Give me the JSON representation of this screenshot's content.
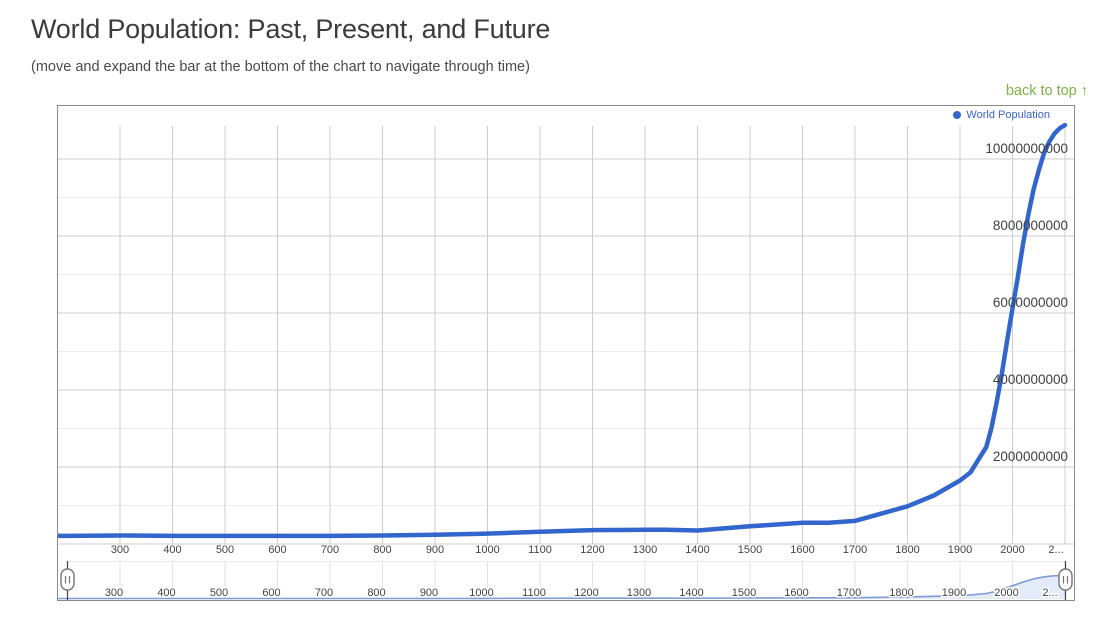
{
  "page": {
    "title": "World Population: Past, Present, and Future",
    "subtitle": "(move and expand the bar at the bottom of the chart to navigate through time)",
    "back_to_top_label": "back to top",
    "back_to_top_arrow": "↑"
  },
  "colors": {
    "series_line": "#3366cc",
    "legend_text": "#3a64c8",
    "mini_line": "#7e9cd9",
    "mini_fill": "rgba(102,140,217,0.18)",
    "grid_major": "#cccccc",
    "grid_minor": "#ebebf3",
    "slider_grid": "#e2e2e8",
    "slider_separator": "#e7e7e7",
    "axis_label": "#444444",
    "y_label": "#3f3f3f",
    "panel_border": "#8a8a8a",
    "back_to_top_green": "#7cb342",
    "handle_stroke": "#757575",
    "handle_line": "#444444"
  },
  "chart_data": {
    "type": "line",
    "title": "",
    "legend": [
      {
        "label": "World Population",
        "color": "#3366cc"
      }
    ],
    "legend_position": "top-right",
    "grid": true,
    "unit": "persons (y labels absolute), series values in billions",
    "xlim": [
      182,
      2100
    ],
    "ylim_billions": [
      0,
      11.3
    ],
    "x": [
      182,
      200,
      300,
      400,
      500,
      600,
      700,
      800,
      900,
      1000,
      1100,
      1200,
      1300,
      1340,
      1400,
      1500,
      1600,
      1650,
      1700,
      1750,
      1800,
      1850,
      1900,
      1920,
      1940,
      1950,
      1960,
      1970,
      1980,
      1990,
      2000,
      2010,
      2020,
      2030,
      2040,
      2050,
      2060,
      2070,
      2080,
      2090,
      2100
    ],
    "series": [
      {
        "name": "World Population",
        "values_billions": [
          0.21,
          0.21,
          0.22,
          0.21,
          0.21,
          0.21,
          0.21,
          0.22,
          0.24,
          0.27,
          0.32,
          0.36,
          0.37,
          0.37,
          0.35,
          0.46,
          0.55,
          0.55,
          0.6,
          0.79,
          0.98,
          1.26,
          1.65,
          1.86,
          2.3,
          2.52,
          3.02,
          3.7,
          4.45,
          5.31,
          6.12,
          6.93,
          7.79,
          8.55,
          9.2,
          9.71,
          10.15,
          10.45,
          10.66,
          10.8,
          10.88
        ]
      }
    ],
    "x_ticks": {
      "years": [
        300,
        400,
        500,
        600,
        700,
        800,
        900,
        1000,
        1100,
        1200,
        1300,
        1400,
        1500,
        1600,
        1700,
        1800,
        1900,
        2000,
        2100
      ],
      "labels": [
        "300",
        "400",
        "500",
        "600",
        "700",
        "800",
        "900",
        "1000",
        "1100",
        "1200",
        "1300",
        "1400",
        "1500",
        "1600",
        "1700",
        "1800",
        "1900",
        "2000",
        "2..."
      ]
    },
    "y_ticks": {
      "values_billions": [
        2,
        4,
        6,
        8,
        10
      ],
      "labels": [
        "2000000000",
        "4000000000",
        "6000000000",
        "8000000000",
        "10000000000"
      ]
    },
    "y_minor_ticks_billions": [
      1,
      3,
      5,
      7,
      9
    ],
    "range_filter": {
      "selected_start_year": 200,
      "selected_end_year": 2100,
      "x_tick_labels": [
        "300",
        "400",
        "500",
        "600",
        "700",
        "800",
        "900",
        "1000",
        "1100",
        "1200",
        "1300",
        "1400",
        "1500",
        "1600",
        "1700",
        "1800",
        "1900",
        "2000",
        "2..."
      ]
    }
  }
}
